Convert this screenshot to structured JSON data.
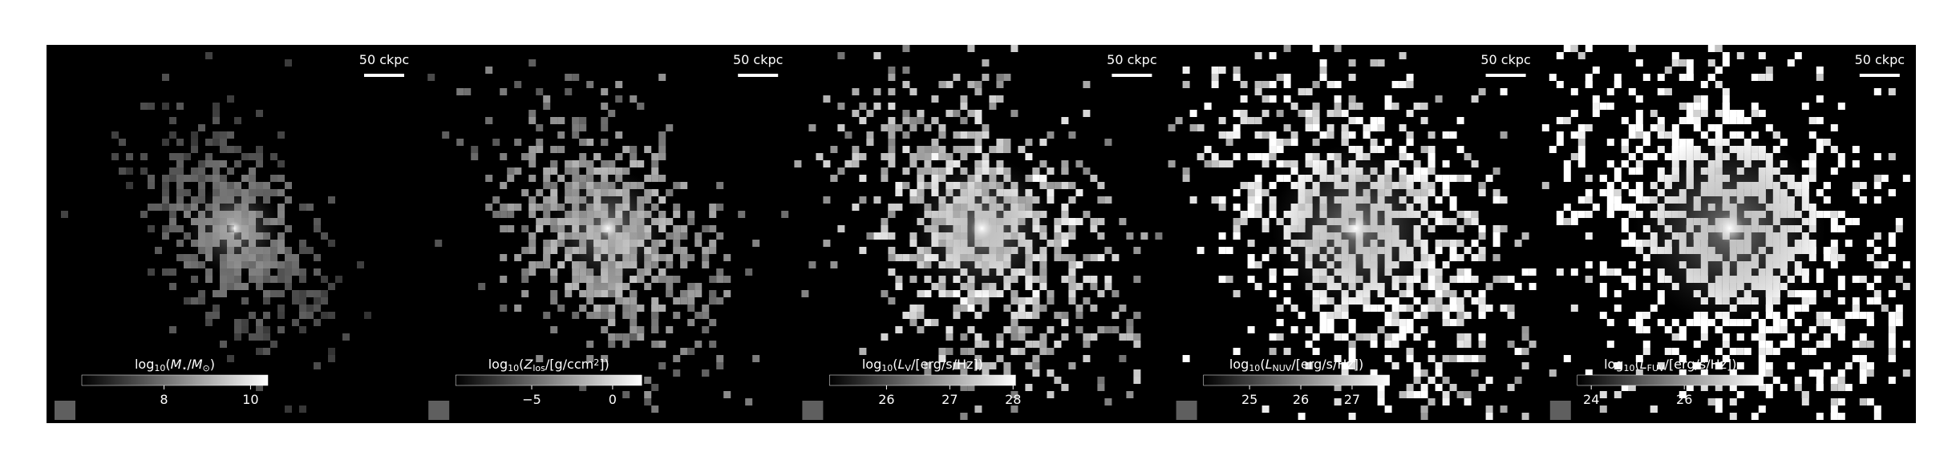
{
  "panels": [
    {
      "scale_bar": "50 ckpc",
      "colorbar": {
        "label": [
          "log",
          {
            "sub": "10"
          },
          "(",
          {
            "i": "M"
          },
          {
            "sub": "⋆"
          },
          "/",
          {
            "i": "M"
          },
          {
            "sub": "⊙"
          },
          ")"
        ],
        "lim": [
          6.1,
          10.4
        ],
        "ticks": [
          8,
          10
        ]
      }
    },
    {
      "scale_bar": "50 ckpc",
      "colorbar": {
        "label": [
          "log",
          {
            "sub": "10"
          },
          "(",
          {
            "i": "Z"
          },
          {
            "sub": "los"
          },
          "/[g/ccm",
          {
            "sup": "2"
          },
          "])"
        ],
        "lim": [
          -9.7,
          1.8
        ],
        "ticks": [
          {
            "value": -5,
            "label": "−5"
          },
          0
        ]
      }
    },
    {
      "scale_bar": "50 ckpc",
      "colorbar": {
        "label": [
          "log",
          {
            "sub": "10"
          },
          "(",
          {
            "i": "L"
          },
          {
            "sub": "V"
          },
          "/[erg/s/Hz])"
        ],
        "lim": [
          25.1,
          28.04
        ],
        "ticks": [
          26,
          27,
          28
        ]
      }
    },
    {
      "scale_bar": "50 ckpc",
      "colorbar": {
        "label": [
          "log",
          {
            "sub": "10"
          },
          "(",
          {
            "i": "L"
          },
          {
            "sub": "NUV"
          },
          "/[erg/s/Hz])"
        ],
        "lim": [
          24.1,
          27.73
        ],
        "ticks": [
          25,
          26,
          27
        ]
      }
    },
    {
      "scale_bar": "50 ckpc",
      "colorbar": {
        "label": [
          "log",
          {
            "sub": "10"
          },
          "(",
          {
            "i": "L"
          },
          {
            "sub": "FUV"
          },
          "/[erg/s/Hz])"
        ],
        "lim": [
          23.7,
          27.7
        ],
        "ticks": [
          24,
          26
        ]
      }
    }
  ]
}
